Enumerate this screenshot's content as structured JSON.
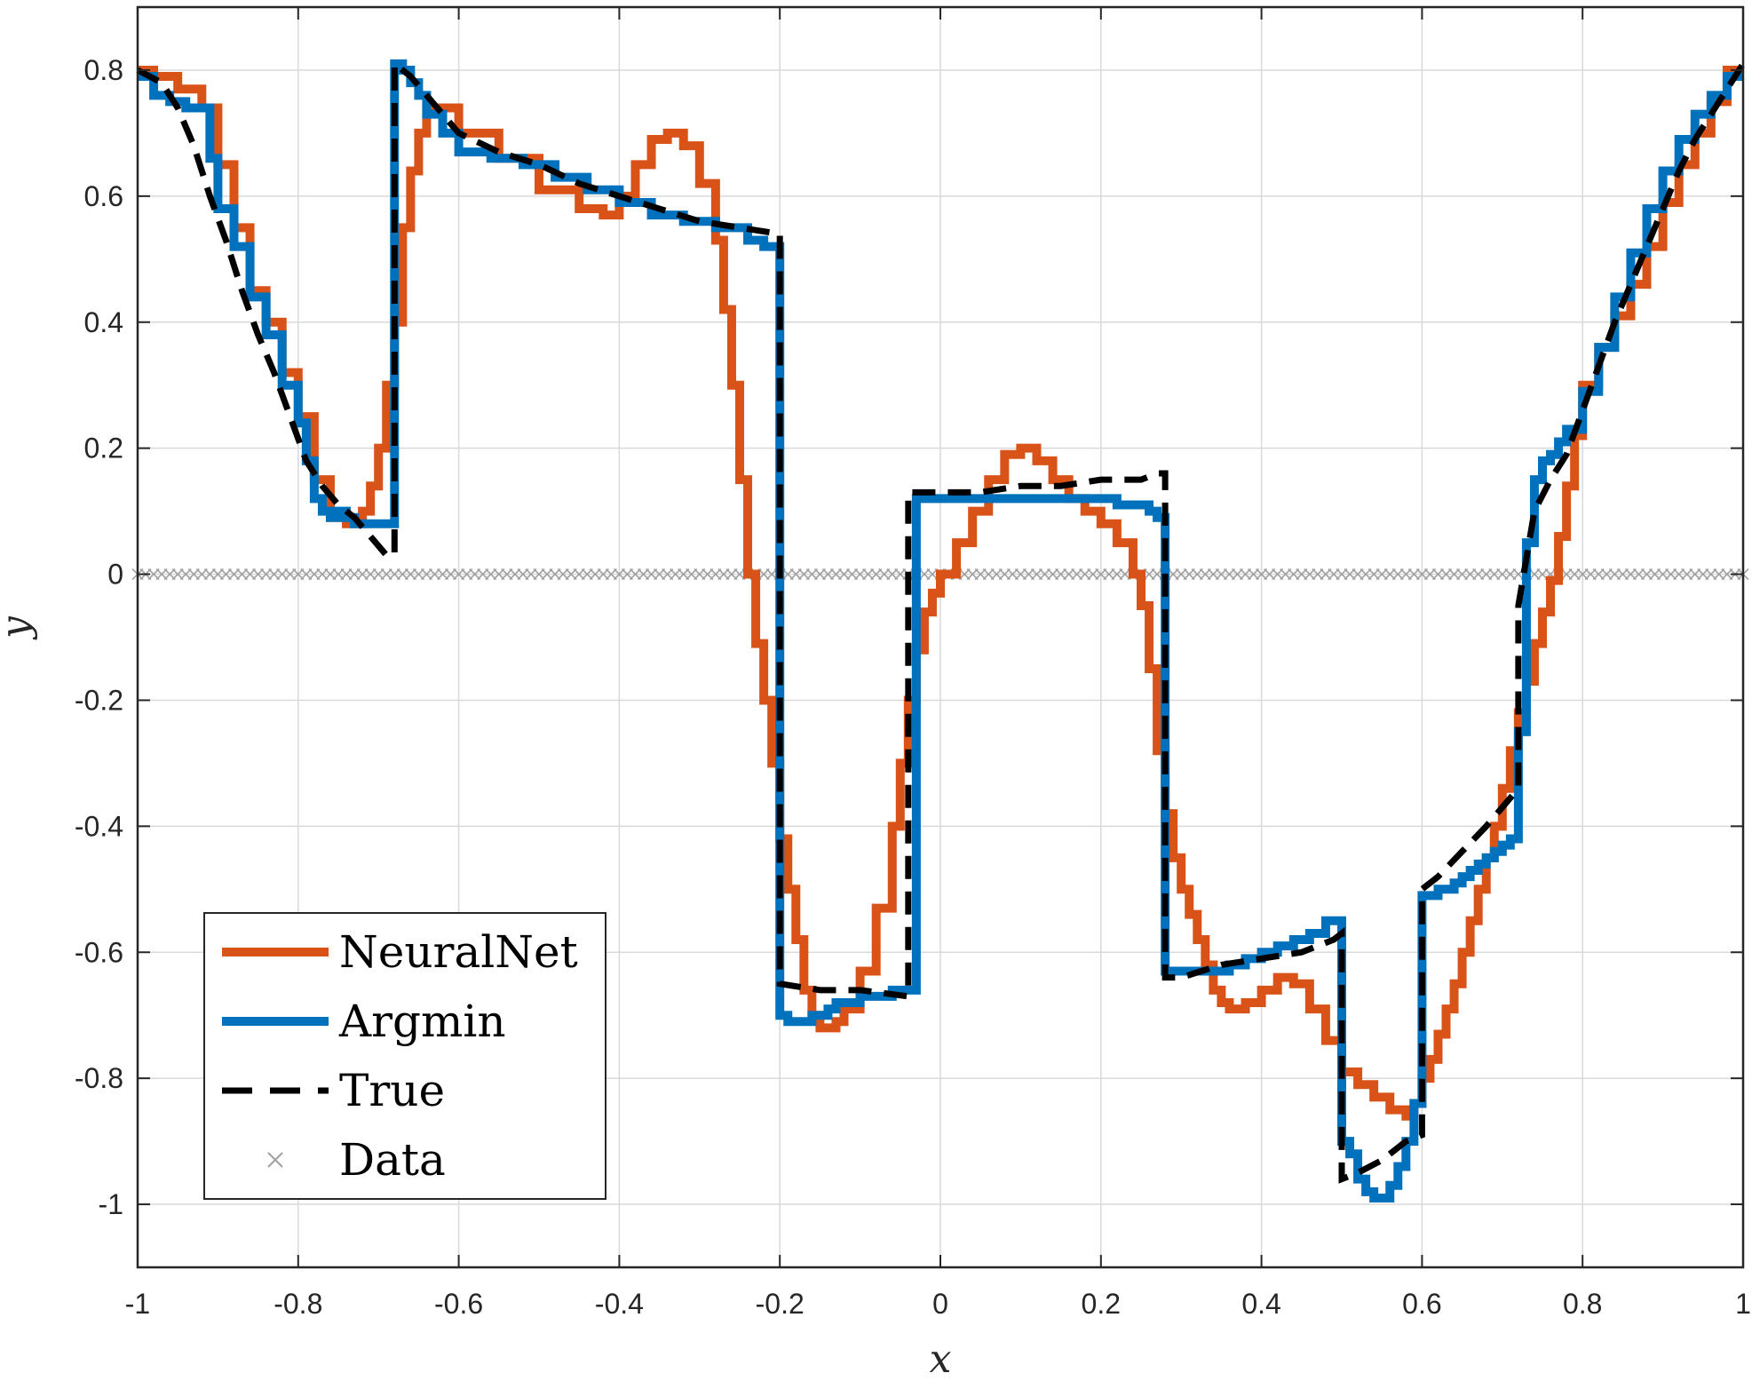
{
  "chart_data": {
    "type": "line",
    "title": "",
    "xlabel": "x",
    "ylabel": "y",
    "xlim": [
      -1,
      1
    ],
    "ylim": [
      -1.1,
      0.9
    ],
    "grid": true,
    "legend_position": "bottom-left",
    "xticks": [
      -1,
      -0.8,
      -0.6,
      -0.4,
      -0.2,
      0,
      0.2,
      0.4,
      0.6,
      0.8,
      1
    ],
    "xtick_labels": [
      "-1",
      "-0.8",
      "-0.6",
      "-0.4",
      "-0.2",
      "0",
      "0.2",
      "0.4",
      "0.6",
      "0.8",
      "1"
    ],
    "yticks": [
      -1,
      -0.8,
      -0.6,
      -0.4,
      -0.2,
      0,
      0.2,
      0.4,
      0.6,
      0.8
    ],
    "ytick_labels": [
      "-1",
      "-0.8",
      "-0.6",
      "-0.4",
      "-0.2",
      "0",
      "0.2",
      "0.4",
      "0.6",
      "0.8"
    ],
    "series": [
      {
        "name": "NeuralNet",
        "style": "stairs",
        "color": "#D95319",
        "x": [
          -1,
          -0.98,
          -0.95,
          -0.92,
          -0.9,
          -0.88,
          -0.86,
          -0.84,
          -0.82,
          -0.8,
          -0.78,
          -0.76,
          -0.74,
          -0.72,
          -0.71,
          -0.7,
          -0.69,
          -0.68,
          -0.67,
          -0.66,
          -0.65,
          -0.64,
          -0.62,
          -0.6,
          -0.55,
          -0.5,
          -0.45,
          -0.42,
          -0.4,
          -0.38,
          -0.36,
          -0.34,
          -0.32,
          -0.3,
          -0.28,
          -0.27,
          -0.26,
          -0.25,
          -0.24,
          -0.23,
          -0.22,
          -0.21,
          -0.2,
          -0.19,
          -0.18,
          -0.17,
          -0.16,
          -0.15,
          -0.14,
          -0.13,
          -0.12,
          -0.1,
          -0.08,
          -0.06,
          -0.05,
          -0.04,
          -0.03,
          -0.02,
          -0.01,
          0,
          0.02,
          0.04,
          0.06,
          0.08,
          0.1,
          0.12,
          0.14,
          0.16,
          0.18,
          0.2,
          0.22,
          0.24,
          0.25,
          0.26,
          0.27,
          0.28,
          0.29,
          0.3,
          0.31,
          0.32,
          0.33,
          0.34,
          0.35,
          0.36,
          0.38,
          0.4,
          0.42,
          0.44,
          0.46,
          0.48,
          0.5,
          0.52,
          0.54,
          0.56,
          0.58,
          0.59,
          0.6,
          0.61,
          0.62,
          0.63,
          0.64,
          0.65,
          0.66,
          0.67,
          0.68,
          0.69,
          0.7,
          0.71,
          0.72,
          0.73,
          0.74,
          0.75,
          0.76,
          0.77,
          0.78,
          0.79,
          0.8,
          0.82,
          0.84,
          0.86,
          0.88,
          0.9,
          0.92,
          0.94,
          0.96,
          0.98
        ],
        "y": [
          0.8,
          0.79,
          0.77,
          0.74,
          0.65,
          0.55,
          0.45,
          0.4,
          0.32,
          0.25,
          0.15,
          0.09,
          0.08,
          0.1,
          0.14,
          0.2,
          0.3,
          0.4,
          0.55,
          0.64,
          0.7,
          0.74,
          0.74,
          0.7,
          0.66,
          0.61,
          0.58,
          0.57,
          0.6,
          0.65,
          0.69,
          0.7,
          0.68,
          0.62,
          0.53,
          0.42,
          0.3,
          0.15,
          0.0,
          -0.11,
          -0.2,
          -0.3,
          -0.42,
          -0.5,
          -0.58,
          -0.66,
          -0.7,
          -0.72,
          -0.72,
          -0.71,
          -0.69,
          -0.63,
          -0.53,
          -0.4,
          -0.3,
          -0.2,
          -0.12,
          -0.06,
          -0.03,
          0.0,
          0.05,
          0.1,
          0.15,
          0.19,
          0.2,
          0.18,
          0.15,
          0.12,
          0.1,
          0.08,
          0.05,
          0.0,
          -0.05,
          -0.15,
          -0.28,
          -0.38,
          -0.45,
          -0.5,
          -0.54,
          -0.58,
          -0.62,
          -0.66,
          -0.68,
          -0.69,
          -0.68,
          -0.66,
          -0.64,
          -0.65,
          -0.69,
          -0.74,
          -0.79,
          -0.81,
          -0.83,
          -0.85,
          -0.86,
          -0.84,
          -0.8,
          -0.77,
          -0.73,
          -0.69,
          -0.65,
          -0.6,
          -0.55,
          -0.5,
          -0.45,
          -0.4,
          -0.34,
          -0.28,
          -0.22,
          -0.17,
          -0.11,
          -0.06,
          -0.01,
          0.06,
          0.14,
          0.22,
          0.3,
          0.36,
          0.41,
          0.46,
          0.52,
          0.59,
          0.65,
          0.7,
          0.75,
          0.8
        ],
        "x_end": 1
      },
      {
        "name": "Argmin",
        "style": "stairs",
        "color": "#0072BD",
        "x": [
          -1,
          -0.98,
          -0.96,
          -0.94,
          -0.92,
          -0.91,
          -0.9,
          -0.88,
          -0.86,
          -0.84,
          -0.82,
          -0.8,
          -0.79,
          -0.78,
          -0.77,
          -0.76,
          -0.75,
          -0.74,
          -0.73,
          -0.72,
          -0.71,
          -0.7,
          -0.69,
          -0.68,
          -0.67,
          -0.66,
          -0.65,
          -0.64,
          -0.62,
          -0.6,
          -0.56,
          -0.52,
          -0.48,
          -0.44,
          -0.4,
          -0.36,
          -0.32,
          -0.28,
          -0.24,
          -0.22,
          -0.2,
          -0.19,
          -0.18,
          -0.17,
          -0.16,
          -0.15,
          -0.14,
          -0.13,
          -0.12,
          -0.1,
          -0.08,
          -0.06,
          -0.04,
          -0.03,
          0.0,
          0.05,
          0.1,
          0.15,
          0.2,
          0.22,
          0.24,
          0.26,
          0.27,
          0.28,
          0.3,
          0.32,
          0.34,
          0.36,
          0.38,
          0.4,
          0.42,
          0.44,
          0.46,
          0.48,
          0.5,
          0.51,
          0.52,
          0.53,
          0.54,
          0.55,
          0.56,
          0.57,
          0.58,
          0.59,
          0.6,
          0.61,
          0.62,
          0.63,
          0.64,
          0.65,
          0.66,
          0.67,
          0.68,
          0.69,
          0.7,
          0.71,
          0.72,
          0.73,
          0.74,
          0.75,
          0.76,
          0.77,
          0.78,
          0.8,
          0.82,
          0.84,
          0.86,
          0.88,
          0.9,
          0.92,
          0.94,
          0.96,
          0.98
        ],
        "y": [
          0.79,
          0.76,
          0.75,
          0.74,
          0.74,
          0.66,
          0.58,
          0.52,
          0.44,
          0.38,
          0.3,
          0.24,
          0.18,
          0.12,
          0.1,
          0.09,
          0.1,
          0.09,
          0.08,
          0.08,
          0.08,
          0.08,
          0.08,
          0.81,
          0.8,
          0.78,
          0.76,
          0.73,
          0.7,
          0.67,
          0.66,
          0.65,
          0.63,
          0.61,
          0.59,
          0.57,
          0.56,
          0.55,
          0.53,
          0.52,
          -0.7,
          -0.71,
          -0.71,
          -0.71,
          -0.7,
          -0.7,
          -0.69,
          -0.68,
          -0.68,
          -0.67,
          -0.67,
          -0.66,
          -0.66,
          0.12,
          0.12,
          0.12,
          0.12,
          0.12,
          0.12,
          0.11,
          0.11,
          0.1,
          0.09,
          -0.63,
          -0.63,
          -0.63,
          -0.63,
          -0.62,
          -0.61,
          -0.6,
          -0.59,
          -0.58,
          -0.57,
          -0.55,
          -0.9,
          -0.92,
          -0.96,
          -0.98,
          -0.99,
          -0.99,
          -0.97,
          -0.94,
          -0.9,
          -0.84,
          -0.51,
          -0.51,
          -0.5,
          -0.5,
          -0.49,
          -0.48,
          -0.47,
          -0.46,
          -0.45,
          -0.44,
          -0.43,
          -0.42,
          -0.25,
          0.05,
          0.15,
          0.18,
          0.19,
          0.21,
          0.23,
          0.29,
          0.36,
          0.44,
          0.51,
          0.58,
          0.64,
          0.69,
          0.73,
          0.76,
          0.79
        ],
        "x_end": 1
      },
      {
        "name": "True",
        "style": "dashed",
        "color": "#000000",
        "x": [
          -1,
          -0.97,
          -0.95,
          -0.93,
          -0.91,
          -0.89,
          -0.87,
          -0.85,
          -0.83,
          -0.81,
          -0.79,
          -0.77,
          -0.75,
          -0.73,
          -0.71,
          -0.69,
          -0.68,
          -0.68,
          -0.66,
          -0.64,
          -0.6,
          -0.55,
          -0.5,
          -0.45,
          -0.4,
          -0.35,
          -0.3,
          -0.25,
          -0.2,
          -0.2,
          -0.15,
          -0.1,
          -0.04,
          -0.04,
          0.0,
          0.05,
          0.1,
          0.15,
          0.2,
          0.25,
          0.27,
          0.28,
          0.28,
          0.3,
          0.35,
          0.4,
          0.45,
          0.49,
          0.5,
          0.5,
          0.52,
          0.55,
          0.58,
          0.6,
          0.6,
          0.62,
          0.65,
          0.68,
          0.7,
          0.72,
          0.72,
          0.74,
          0.76,
          0.78,
          0.8,
          0.82,
          0.84,
          0.86,
          0.88,
          0.9,
          0.92,
          0.94,
          0.96,
          0.98,
          1
        ],
        "y": [
          0.8,
          0.78,
          0.74,
          0.68,
          0.6,
          0.53,
          0.45,
          0.38,
          0.32,
          0.25,
          0.18,
          0.14,
          0.11,
          0.09,
          0.06,
          0.03,
          0.03,
          0.81,
          0.79,
          0.76,
          0.7,
          0.67,
          0.65,
          0.62,
          0.6,
          0.58,
          0.56,
          0.55,
          0.54,
          -0.65,
          -0.66,
          -0.66,
          -0.67,
          0.13,
          0.13,
          0.13,
          0.14,
          0.14,
          0.15,
          0.15,
          0.16,
          0.16,
          -0.64,
          -0.64,
          -0.62,
          -0.61,
          -0.6,
          -0.58,
          -0.57,
          -0.96,
          -0.95,
          -0.93,
          -0.9,
          -0.89,
          -0.5,
          -0.48,
          -0.44,
          -0.4,
          -0.37,
          -0.34,
          -0.05,
          0.1,
          0.15,
          0.19,
          0.26,
          0.33,
          0.4,
          0.46,
          0.52,
          0.58,
          0.64,
          0.69,
          0.73,
          0.77,
          0.81
        ]
      },
      {
        "name": "Data",
        "style": "markers",
        "marker": "x",
        "color": "#A0A0A0",
        "x_range": [
          -1,
          1
        ],
        "count": 201,
        "y_constant": 0
      }
    ]
  }
}
